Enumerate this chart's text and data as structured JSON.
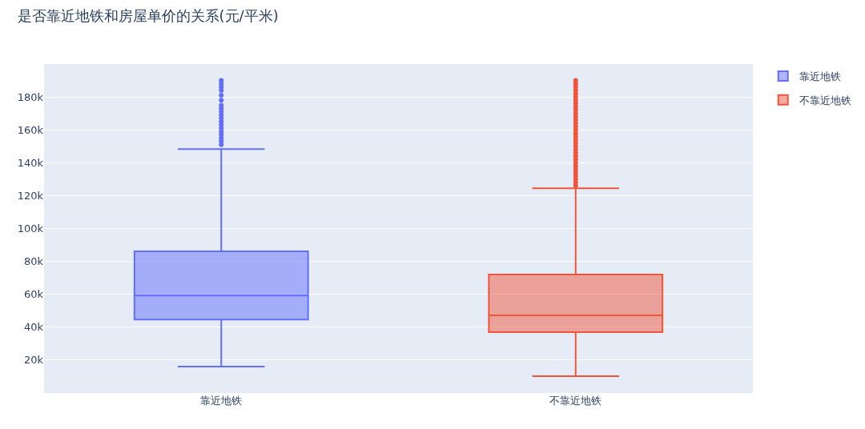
{
  "chart_data": {
    "type": "box",
    "title": "是否靠近地铁和房屋单价的关系(元/平米)",
    "categories": [
      "靠近地铁",
      "不靠近地铁"
    ],
    "series": [
      {
        "name": "靠近地铁",
        "color": "#636efa",
        "boxes": [
          {
            "low": 16000,
            "q1": 44700,
            "median": 59300,
            "q3": 86100,
            "high": 148300,
            "outliers": [
              151000,
              153000,
              155000,
              157000,
              159000,
              161000,
              163000,
              165000,
              167000,
              169000,
              171000,
              173000,
              175000,
              178000,
              181000,
              184000,
              186000,
              188000,
              190000
            ]
          },
          null
        ]
      },
      {
        "name": "不靠近地铁",
        "color": "#ef553b",
        "boxes": [
          null,
          {
            "low": 10200,
            "q1": 37000,
            "median": 47200,
            "q3": 72000,
            "high": 124500,
            "outliers": [
              126000,
              128000,
              130000,
              132000,
              134000,
              136000,
              138000,
              140000,
              142000,
              144000,
              146000,
              148000,
              150000,
              152000,
              154000,
              156000,
              158000,
              160000,
              162000,
              164000,
              166000,
              168000,
              170000,
              172000,
              174000,
              176000,
              178000,
              180000,
              182000,
              184000,
              186000,
              188000,
              190000
            ]
          }
        ]
      }
    ],
    "ylim": [
      0,
      200000
    ],
    "yticks": [
      {
        "value": 20000,
        "label": "20k"
      },
      {
        "value": 40000,
        "label": "40k"
      },
      {
        "value": 60000,
        "label": "60k"
      },
      {
        "value": 80000,
        "label": "80k"
      },
      {
        "value": 100000,
        "label": "100k"
      },
      {
        "value": 120000,
        "label": "120k"
      },
      {
        "value": 140000,
        "label": "140k"
      },
      {
        "value": 160000,
        "label": "160k"
      },
      {
        "value": 180000,
        "label": "180k"
      }
    ],
    "grid": "y",
    "legend": "top right"
  }
}
